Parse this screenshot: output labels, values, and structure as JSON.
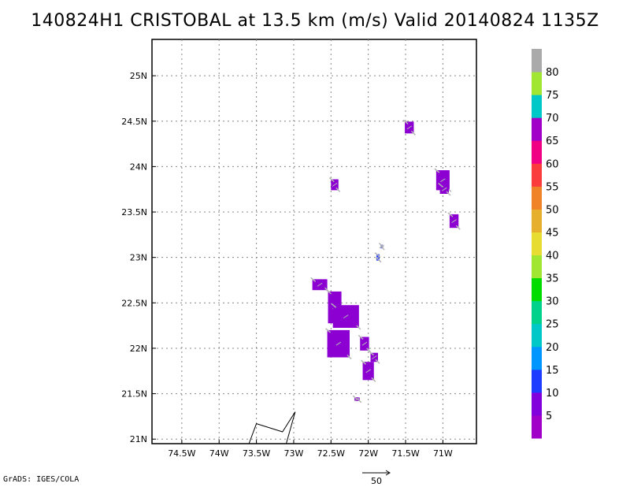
{
  "title": "140824H1 CRISTOBAL at 13.5 km (m/s) Valid 20140824 1135Z",
  "credit": "GrADS: IGES/COLA",
  "map": {
    "lon_range": [
      -74.9,
      -70.55
    ],
    "lat_range": [
      20.95,
      25.4
    ],
    "lon_ticks": [
      {
        "value": -74.5,
        "label": "74.5W"
      },
      {
        "value": -74.0,
        "label": "74W"
      },
      {
        "value": -73.5,
        "label": "73.5W"
      },
      {
        "value": -73.0,
        "label": "73W"
      },
      {
        "value": -72.5,
        "label": "72.5W"
      },
      {
        "value": -72.0,
        "label": "72W"
      },
      {
        "value": -71.5,
        "label": "71.5W"
      },
      {
        "value": -71.0,
        "label": "71W"
      }
    ],
    "lat_ticks": [
      {
        "value": 21.0,
        "label": "21N"
      },
      {
        "value": 21.5,
        "label": "21.5N"
      },
      {
        "value": 22.0,
        "label": "22N"
      },
      {
        "value": 22.5,
        "label": "22.5N"
      },
      {
        "value": 23.0,
        "label": "23N"
      },
      {
        "value": 23.5,
        "label": "23.5N"
      },
      {
        "value": 24.0,
        "label": "24N"
      },
      {
        "value": 24.5,
        "label": "24.5N"
      },
      {
        "value": 25.0,
        "label": "25N"
      }
    ],
    "coastline": [
      [
        -73.6,
        20.95
      ],
      [
        -73.5,
        21.17
      ],
      [
        -73.15,
        21.08
      ],
      [
        -72.98,
        21.3
      ],
      [
        -73.1,
        20.95
      ]
    ],
    "wind_cells": [
      {
        "lon": -71.45,
        "lat": 24.43,
        "w": 0.12,
        "h": 0.13
      },
      {
        "lon": -71.0,
        "lat": 23.85,
        "w": 0.18,
        "h": 0.22
      },
      {
        "lon": -70.98,
        "lat": 23.75,
        "w": 0.12,
        "h": 0.1
      },
      {
        "lon": -70.85,
        "lat": 23.4,
        "w": 0.12,
        "h": 0.15
      },
      {
        "lon": -72.45,
        "lat": 23.8,
        "w": 0.1,
        "h": 0.12
      },
      {
        "lon": -72.65,
        "lat": 22.7,
        "w": 0.2,
        "h": 0.12
      },
      {
        "lon": -72.45,
        "lat": 22.45,
        "w": 0.18,
        "h": 0.35
      },
      {
        "lon": -72.3,
        "lat": 22.35,
        "w": 0.35,
        "h": 0.25
      },
      {
        "lon": -72.4,
        "lat": 22.05,
        "w": 0.3,
        "h": 0.3
      },
      {
        "lon": -72.05,
        "lat": 22.05,
        "w": 0.12,
        "h": 0.15
      },
      {
        "lon": -72.0,
        "lat": 21.75,
        "w": 0.15,
        "h": 0.2
      },
      {
        "lon": -71.92,
        "lat": 21.9,
        "w": 0.1,
        "h": 0.1
      },
      {
        "lon": -72.15,
        "lat": 21.44,
        "w": 0.07,
        "h": 0.04
      }
    ],
    "wind_cells_blue": [
      {
        "lon": -71.87,
        "lat": 23.0,
        "w": 0.04,
        "h": 0.07
      },
      {
        "lon": -71.82,
        "lat": 23.12,
        "w": 0.03,
        "h": 0.04
      }
    ]
  },
  "colorbar": {
    "labels": [
      "5",
      "10",
      "15",
      "20",
      "25",
      "30",
      "35",
      "40",
      "45",
      "50",
      "55",
      "60",
      "65",
      "70",
      "75",
      "80"
    ],
    "colors": [
      "#a000c8",
      "#8200dc",
      "#1e3cff",
      "#0096ff",
      "#00c8c8",
      "#00d28c",
      "#00dc00",
      "#a0e632",
      "#e6dc32",
      "#e6af2d",
      "#f08228",
      "#fa3c3c",
      "#f00082",
      "#a000c8",
      "#00c8c8",
      "#a0e632",
      "#aaaaaa"
    ]
  },
  "colors": {
    "wind_fill": "#8c00d2",
    "wind_fill_blue": "#1e3cff",
    "vector": "#b4b4b4"
  },
  "vector_key": {
    "label": "50"
  }
}
